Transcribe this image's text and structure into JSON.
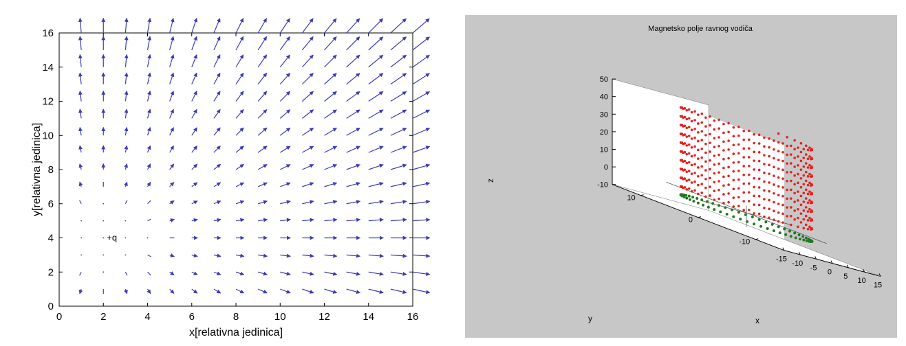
{
  "chart_data": [
    {
      "type": "quiver",
      "title": "",
      "xlabel": "x[relativna jedinica]",
      "ylabel": "y[relativna jedinica]",
      "xlim": [
        0,
        16
      ],
      "ylim": [
        0,
        16
      ],
      "xticks": [
        "0",
        "2",
        "4",
        "6",
        "8",
        "10",
        "12",
        "14",
        "16"
      ],
      "yticks": [
        "0",
        "2",
        "4",
        "6",
        "8",
        "10",
        "12",
        "14",
        "16"
      ],
      "grid": false,
      "charge": {
        "label": "+q",
        "x": 2,
        "y": 4
      },
      "vectors": {
        "x": [
          1,
          2,
          3,
          4,
          5,
          6,
          7,
          8,
          9,
          10,
          11,
          12,
          13,
          14,
          15,
          16
        ],
        "y": [
          1,
          2,
          3,
          4,
          5,
          6,
          7,
          8,
          9,
          10,
          11,
          12,
          13,
          14,
          15,
          16
        ],
        "model": "field of +q at (2,4), magnitude grows with distance",
        "arrow_color": "#3a3ab8"
      }
    },
    {
      "type": "scatter3d",
      "title": "Magnetsko polje ravnog vodiča",
      "xlabel": "x",
      "ylabel": "y",
      "zlabel": "z",
      "xlim": [
        -15,
        15
      ],
      "ylim": [
        -15,
        15
      ],
      "zlim": [
        -10,
        50
      ],
      "xticks": [
        "-15",
        "-10",
        "-5",
        "0",
        "5",
        "10",
        "15"
      ],
      "yticks": [
        "-10",
        "0",
        "10"
      ],
      "zticks": [
        "-10",
        "0",
        "10",
        "20",
        "30",
        "40",
        "50"
      ],
      "series": [
        {
          "color": "#e62020",
          "radius": 10,
          "z_start": 0,
          "z_end": 50,
          "turns": 10
        },
        {
          "color": "#1f7a1f",
          "radius": 10,
          "z": -3
        }
      ],
      "background": "#c7c7c7"
    }
  ]
}
